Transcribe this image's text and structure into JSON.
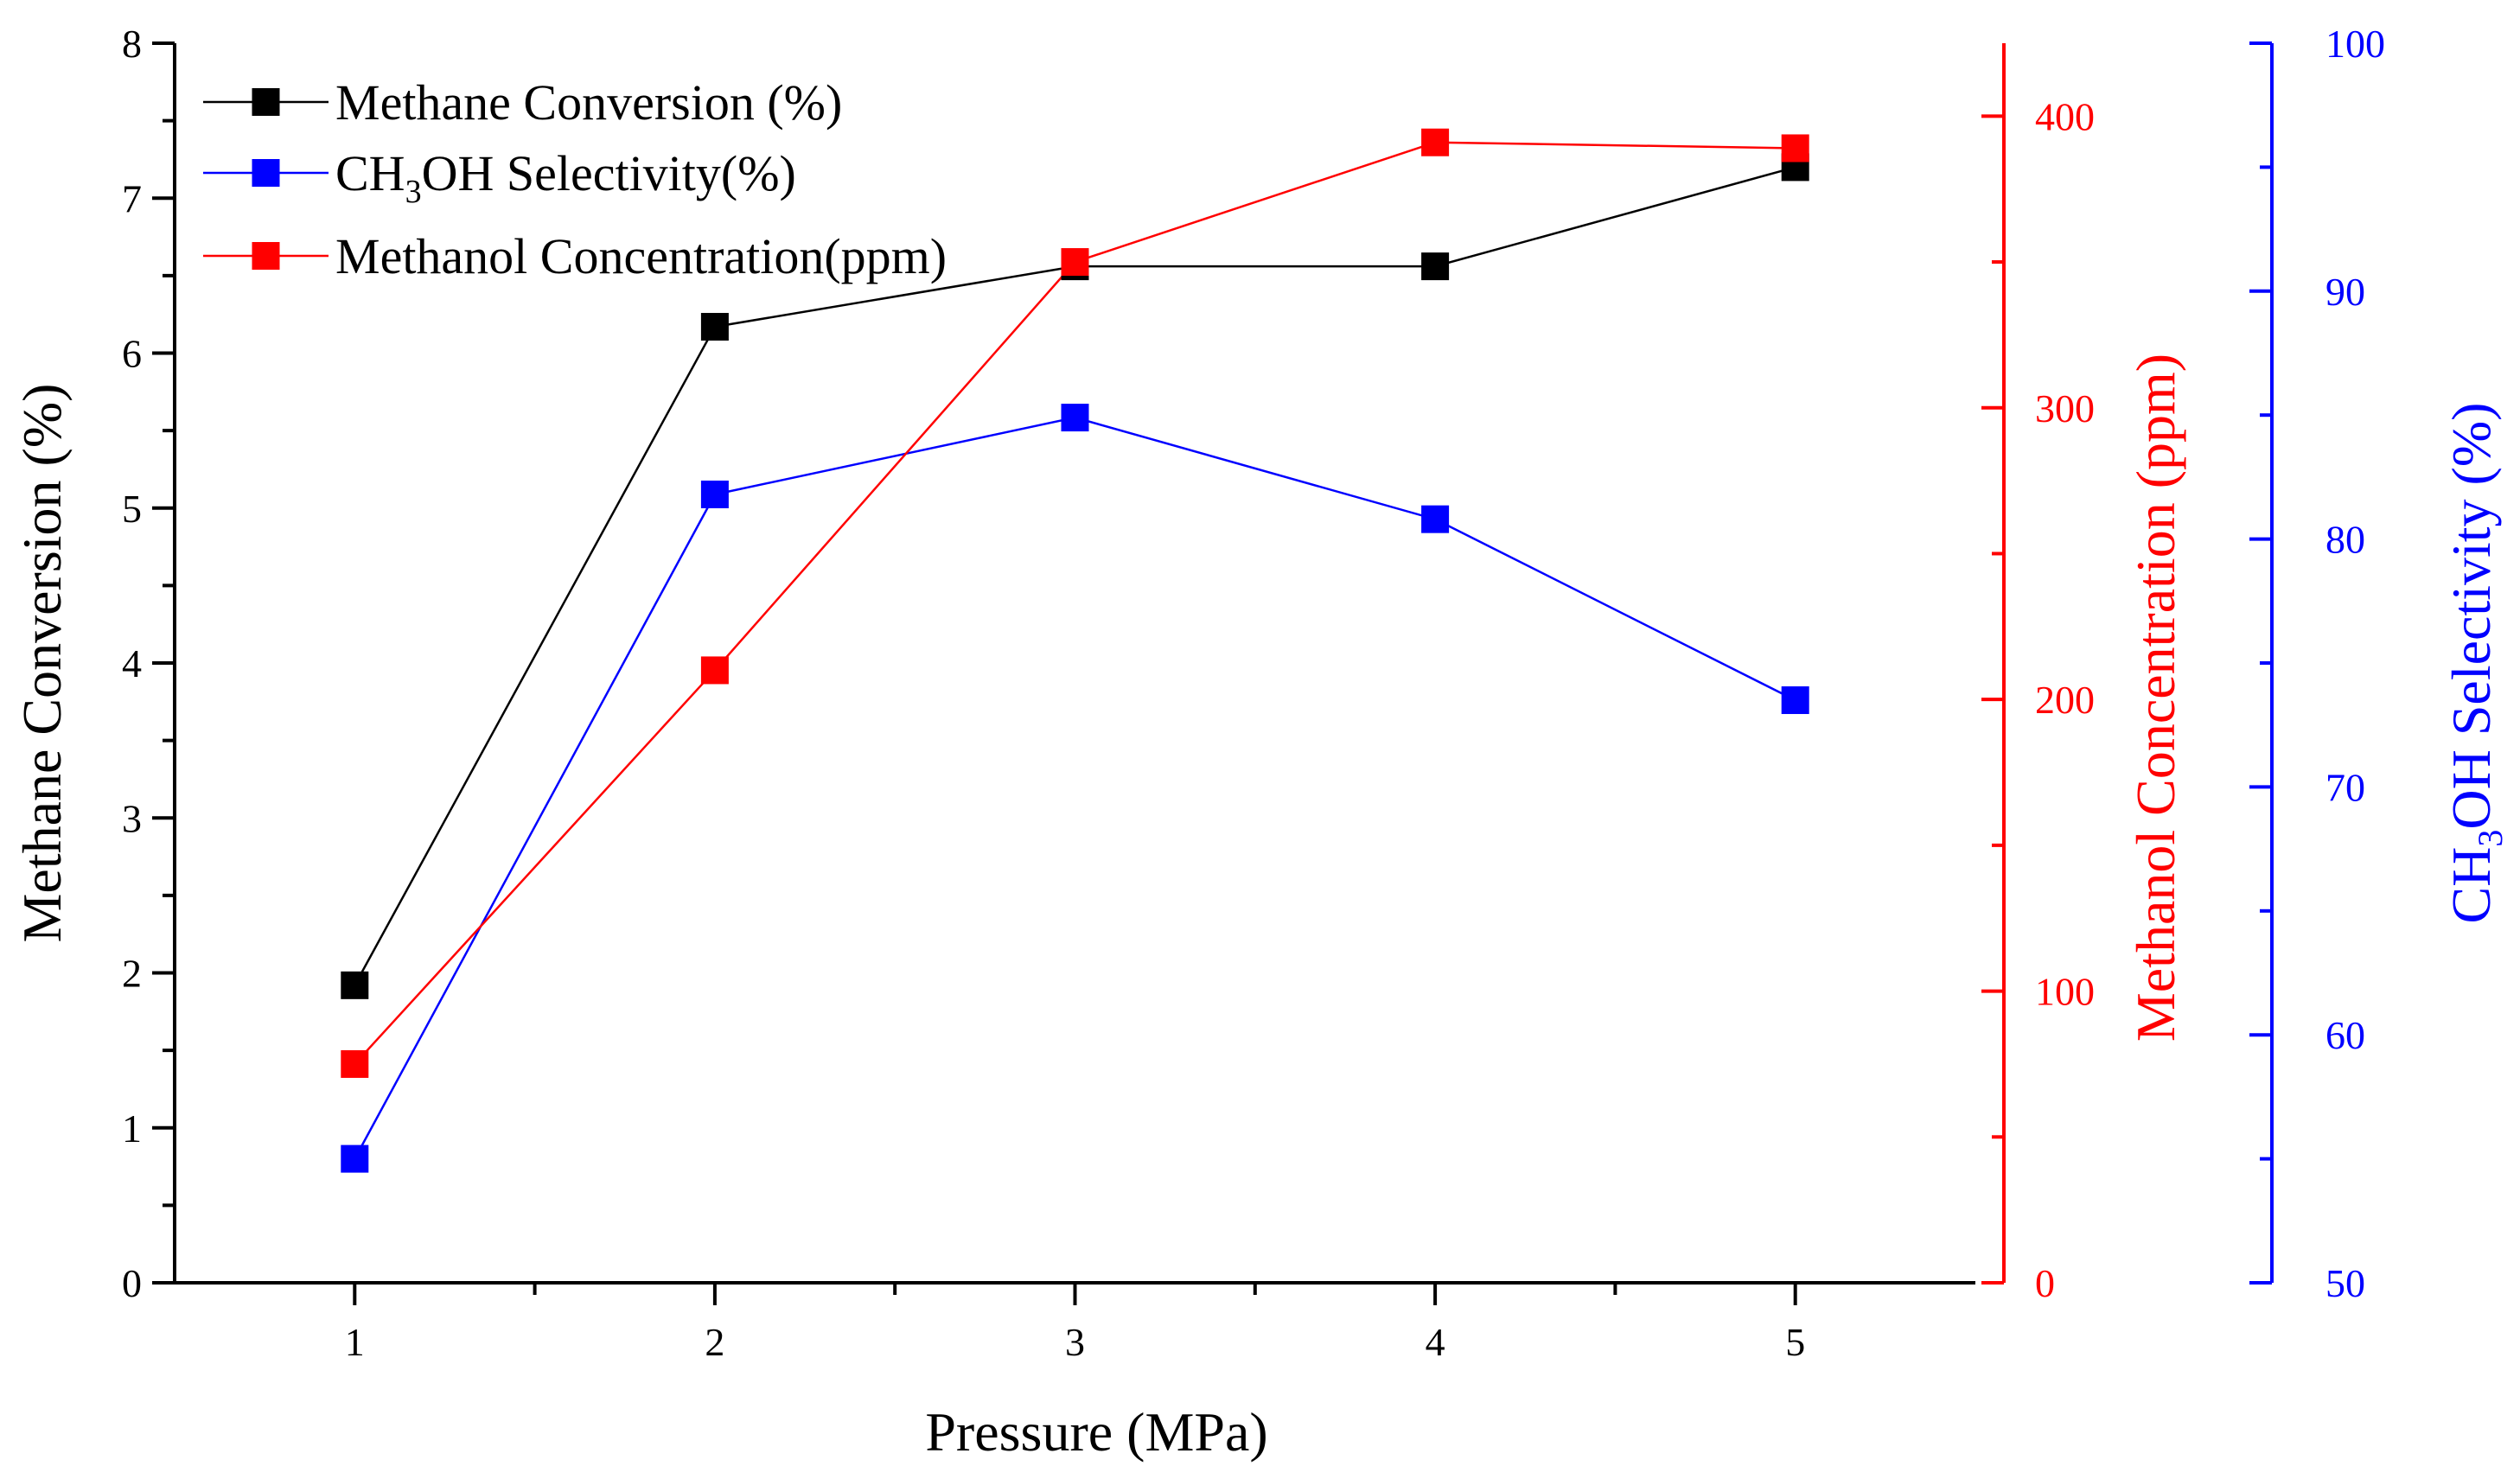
{
  "chart_data": {
    "type": "line",
    "x": [
      1,
      2,
      3,
      4,
      5
    ],
    "xlabel": "Pressure (MPa)",
    "xlim": [
      0.5,
      5.5
    ],
    "xticks": [
      1,
      2,
      3,
      4,
      5
    ],
    "xtick_labels": [
      "1",
      "2",
      "3",
      "4",
      "5"
    ],
    "axes": {
      "left": {
        "label": "Methane Conversion (%)",
        "color": "#000000",
        "ylim": [
          0,
          8
        ],
        "ticks": [
          0,
          1,
          2,
          3,
          4,
          5,
          6,
          7,
          8
        ],
        "tick_labels": [
          "0",
          "1",
          "2",
          "3",
          "4",
          "5",
          "6",
          "7",
          "8"
        ]
      },
      "right_red": {
        "label": "Methanol Concentration (ppm)",
        "color": "#ff0000",
        "ylim": [
          0,
          425
        ],
        "ticks": [
          0,
          100,
          200,
          300,
          400
        ],
        "tick_labels": [
          "0",
          "100",
          "200",
          "300",
          "400"
        ]
      },
      "right_blue": {
        "label_main": "CH",
        "label_sub": "3",
        "label_rest": "OH Selectivity (%)",
        "color": "#0000ff",
        "ylim": [
          50,
          100
        ],
        "ticks": [
          50,
          60,
          70,
          80,
          90,
          100
        ],
        "tick_labels": [
          "50",
          "60",
          "70",
          "80",
          "90",
          "100"
        ]
      }
    },
    "series": [
      {
        "name": "Methane Conversion (%)",
        "axis": "left",
        "color": "#000000",
        "values": [
          1.92,
          6.17,
          6.56,
          6.56,
          7.2
        ]
      },
      {
        "name_main": "CH",
        "name_sub": "3",
        "name_rest": "OH Selectivity(%)",
        "axis": "right_blue",
        "color": "#0000ff",
        "values": [
          55.0,
          81.8,
          84.9,
          80.8,
          73.5
        ]
      },
      {
        "name": "Methanol Concentration(ppm)",
        "axis": "right_red",
        "color": "#ff0000",
        "values": [
          75,
          210,
          350,
          391,
          389
        ]
      }
    ],
    "legend_position": "top-left"
  }
}
